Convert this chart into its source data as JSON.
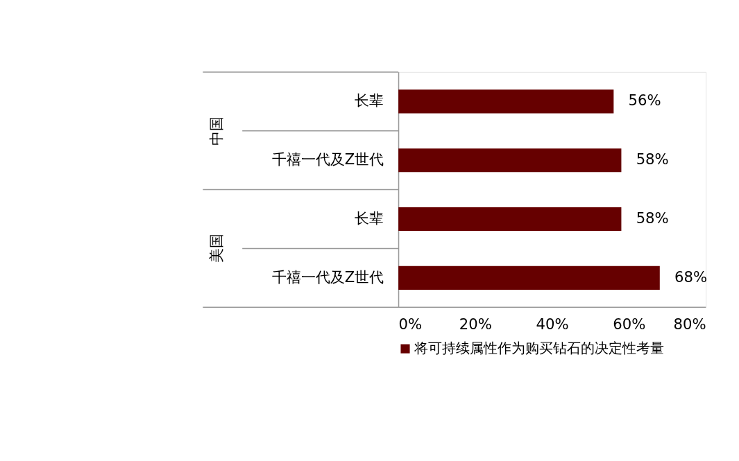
{
  "chart_data": {
    "type": "bar",
    "orientation": "horizontal",
    "categories": [
      "长辈",
      "千禧一代及Z世代",
      "长辈",
      "千禧一代及Z世代"
    ],
    "series": [
      {
        "name": "将可持续属性作为购买钻石的决定性考量",
        "color": "#660000",
        "values": [
          56,
          58,
          58,
          68
        ],
        "value_labels": [
          "56%",
          "58%",
          "58%",
          "68%"
        ]
      }
    ],
    "annotations": [
      "中国",
      "美国"
    ],
    "xlim": [
      0,
      80
    ],
    "xticks": [
      {
        "value": 0,
        "label": "0%"
      },
      {
        "value": 20,
        "label": "20%"
      },
      {
        "value": 40,
        "label": "40%"
      },
      {
        "value": 60,
        "label": "60%"
      },
      {
        "value": 80,
        "label": "80%"
      }
    ],
    "grid": false,
    "legend": "bottom"
  }
}
